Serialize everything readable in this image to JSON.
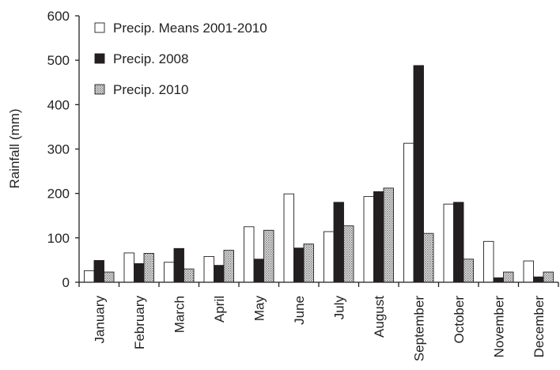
{
  "chart_data": {
    "type": "bar",
    "ylabel": "Rainfall (mm)",
    "ylim": [
      0,
      600
    ],
    "yticks": [
      0,
      100,
      200,
      300,
      400,
      500,
      600
    ],
    "categories": [
      "January",
      "February",
      "March",
      "April",
      "May",
      "June",
      "July",
      "August",
      "September",
      "October",
      "November",
      "December"
    ],
    "legend_position": "top-left",
    "grid": false,
    "series": [
      {
        "name": "Precip. Means 2001-2010",
        "fill": "white",
        "values": [
          26,
          66,
          45,
          58,
          125,
          199,
          114,
          193,
          313,
          176,
          92,
          48
        ]
      },
      {
        "name": "Precip. 2008",
        "fill": "black",
        "values": [
          49,
          42,
          76,
          38,
          52,
          77,
          180,
          204,
          488,
          180,
          10,
          12
        ]
      },
      {
        "name": "Precip. 2010",
        "fill": "dotted-gray",
        "values": [
          23,
          65,
          30,
          72,
          117,
          86,
          127,
          212,
          110,
          52,
          23,
          23
        ]
      }
    ]
  }
}
